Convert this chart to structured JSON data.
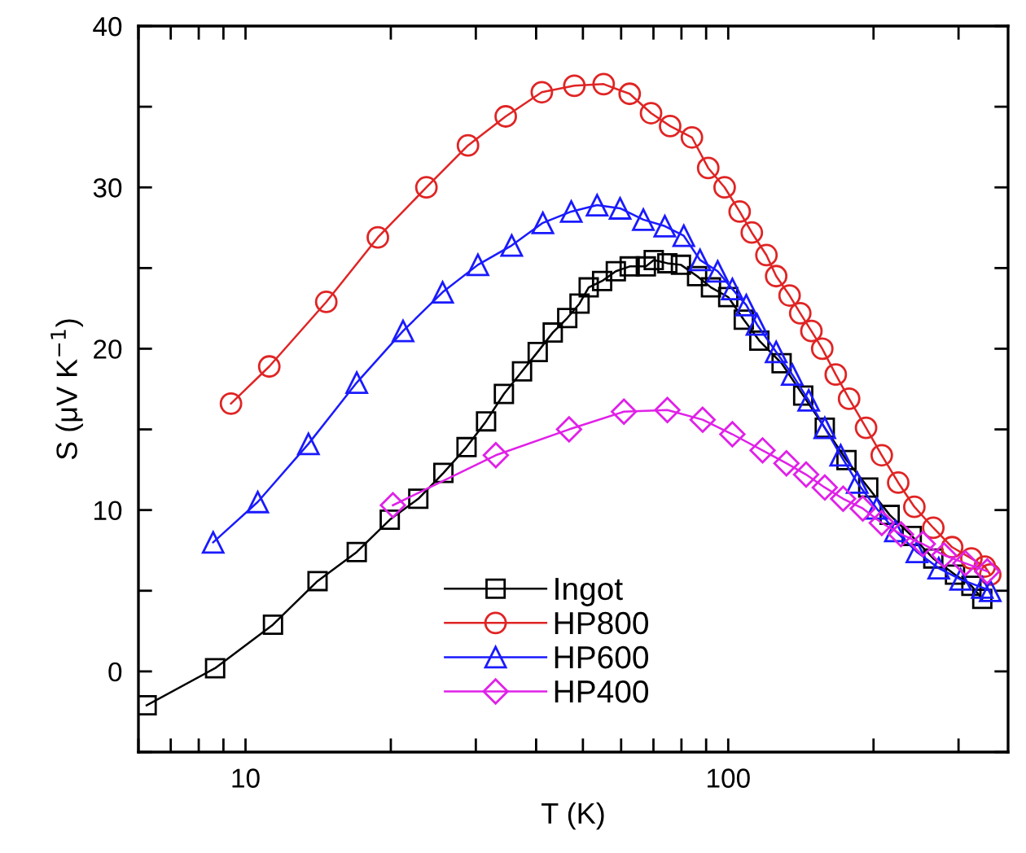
{
  "chart_data": {
    "type": "line",
    "xlabel": "T (K)",
    "ylabel": "S (μV K$^{−1}$)",
    "log": "x",
    "xlim": [
      6,
      380
    ],
    "ylim": [
      -5,
      40
    ],
    "xticks": [
      {
        "value": 6,
        "label": null
      },
      {
        "value": 7,
        "label": null
      },
      {
        "value": 8,
        "label": null
      },
      {
        "value": 9,
        "label": null
      },
      10,
      {
        "value": 20,
        "label": null
      },
      {
        "value": 30,
        "label": null
      },
      {
        "value": 40,
        "label": null
      },
      {
        "value": 50,
        "label": null
      },
      {
        "value": 60,
        "label": null
      },
      {
        "value": 70,
        "label": null
      },
      {
        "value": 80,
        "label": null
      },
      {
        "value": 90,
        "label": null
      },
      100,
      {
        "value": 200,
        "label": null
      },
      {
        "value": 300,
        "label": null
      }
    ],
    "yticks": [
      0,
      {
        "value": 5,
        "label": null
      },
      10,
      {
        "value": 15,
        "label": null
      },
      20,
      {
        "value": 25,
        "label": null
      },
      30,
      {
        "value": 35,
        "label": null
      },
      40,
      {
        "value": -5,
        "label": null
      }
    ],
    "grid": false,
    "legend": "bottom",
    "line_style": "solid",
    "series": [
      {
        "name": "Ingot",
        "color": "#000000",
        "marker": "square",
        "x": [
          6.24,
          8.65,
          11.4,
          14.1,
          17.0,
          19.9,
          22.8,
          25.7,
          28.7,
          31.5,
          34.3,
          37.4,
          40.3,
          43.3,
          46.4,
          49.2,
          51.4,
          54.8,
          58.5,
          62.5,
          67.5,
          70.1,
          74.8,
          79.8,
          86.2,
          92.1,
          100,
          107.7,
          116,
          129,
          143,
          158.5,
          175.8,
          195,
          216,
          240,
          266,
          295,
          319,
          336
        ],
        "values": [
          -2.1,
          0.2,
          2.9,
          5.6,
          7.4,
          9.4,
          10.7,
          12.3,
          13.9,
          15.5,
          17.2,
          18.6,
          19.8,
          21.0,
          21.9,
          22.8,
          23.8,
          24.2,
          24.8,
          25.1,
          25.1,
          25.5,
          25.3,
          25.2,
          24.5,
          23.8,
          23.2,
          21.8,
          20.5,
          19.1,
          17.1,
          15.1,
          13.1,
          11.4,
          9.7,
          8.4,
          7.0,
          6.0,
          5.3,
          4.5
        ]
      },
      {
        "name": "HP800",
        "color": "#e02424",
        "marker": "circle",
        "x": [
          9.33,
          11.2,
          14.7,
          18.8,
          23.7,
          28.9,
          34.6,
          41.1,
          48.0,
          55.2,
          62.5,
          69.2,
          75.8,
          84.1,
          90.9,
          98.3,
          105.6,
          111.9,
          120,
          125.7,
          134,
          141,
          148.7,
          156.6,
          167,
          178,
          193,
          208,
          225,
          243,
          266,
          291,
          319,
          340,
          349
        ],
        "values": [
          16.6,
          18.9,
          22.9,
          26.9,
          30.0,
          32.6,
          34.4,
          35.9,
          36.3,
          36.4,
          35.8,
          34.6,
          33.8,
          33.1,
          31.2,
          30.0,
          28.5,
          27.2,
          25.8,
          24.5,
          23.3,
          22.2,
          21.1,
          20.0,
          18.4,
          16.9,
          15.1,
          13.4,
          11.7,
          10.2,
          8.9,
          7.7,
          7.0,
          6.5,
          6.0
        ]
      },
      {
        "name": "HP600",
        "color": "#1a1aff",
        "marker": "triangle",
        "x": [
          8.57,
          10.6,
          13.5,
          17.0,
          21.2,
          25.6,
          30.3,
          35.6,
          41.3,
          47.3,
          53.5,
          59.7,
          66.7,
          73.9,
          80.9,
          87.4,
          95.1,
          102,
          109,
          114.7,
          125.7,
          135.7,
          146.8,
          158.5,
          171,
          185,
          203,
          222,
          246,
          273,
          303,
          336,
          349
        ],
        "values": [
          8.0,
          10.5,
          14.1,
          17.9,
          21.1,
          23.5,
          25.2,
          26.4,
          27.8,
          28.5,
          28.9,
          28.7,
          28.0,
          27.6,
          27.0,
          25.5,
          24.8,
          23.7,
          22.7,
          21.5,
          19.8,
          18.4,
          16.8,
          15.1,
          13.4,
          11.7,
          10.1,
          8.7,
          7.4,
          6.4,
          5.7,
          5.2,
          5.0
        ]
      },
      {
        "name": "HP400",
        "color": "#e020e8",
        "marker": "diamond",
        "x": [
          20.2,
          33.0,
          46.8,
          60.8,
          74.8,
          88.5,
          102,
          117.8,
          132,
          145,
          158.5,
          173,
          190,
          208,
          228,
          253,
          280,
          310,
          344
        ],
        "values": [
          10.3,
          13.4,
          15.0,
          16.1,
          16.2,
          15.6,
          14.7,
          13.7,
          12.9,
          12.2,
          11.4,
          10.7,
          10.1,
          9.2,
          8.5,
          7.9,
          7.2,
          6.7,
          6.2
        ]
      }
    ]
  }
}
